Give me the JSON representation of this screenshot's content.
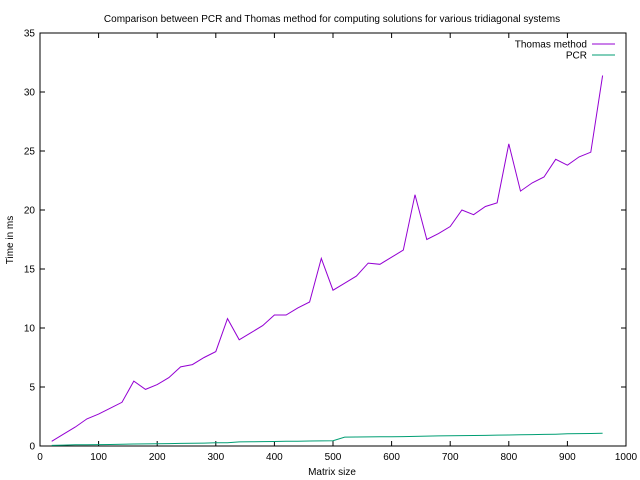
{
  "chart_data": {
    "type": "line",
    "title": "Comparison between PCR and Thomas method for computing solutions for various tridiagonal systems",
    "xlabel": "Matrix size",
    "ylabel": "Time in ms",
    "xlim": [
      0,
      1000
    ],
    "ylim": [
      0,
      35
    ],
    "xticks": [
      0,
      100,
      200,
      300,
      400,
      500,
      600,
      700,
      800,
      900,
      1000
    ],
    "yticks": [
      0,
      5,
      10,
      15,
      20,
      25,
      30,
      35
    ],
    "grid": false,
    "legend_position": "top-right",
    "x": [
      20,
      40,
      60,
      80,
      100,
      120,
      140,
      160,
      180,
      200,
      220,
      240,
      260,
      280,
      300,
      320,
      340,
      360,
      380,
      400,
      420,
      440,
      460,
      480,
      500,
      520,
      540,
      560,
      580,
      600,
      620,
      640,
      660,
      680,
      700,
      720,
      740,
      760,
      780,
      800,
      820,
      840,
      860,
      880,
      900,
      920,
      940,
      960
    ],
    "series": [
      {
        "name": "Thomas method",
        "color": "#9400d3",
        "values": [
          0.4,
          1.0,
          1.6,
          2.3,
          2.7,
          3.2,
          3.7,
          5.5,
          4.8,
          5.2,
          5.8,
          6.7,
          6.9,
          7.5,
          8.0,
          10.8,
          9.0,
          9.6,
          10.2,
          11.1,
          11.1,
          11.7,
          12.2,
          15.9,
          13.2,
          13.8,
          14.4,
          15.5,
          15.4,
          16.0,
          16.6,
          21.3,
          17.5,
          18.0,
          18.6,
          20.0,
          19.6,
          20.3,
          20.6,
          25.6,
          21.6,
          22.3,
          22.8,
          24.3,
          23.8,
          24.5,
          24.9,
          31.4
        ]
      },
      {
        "name": "PCR",
        "color": "#009e73",
        "values": [
          0.05,
          0.08,
          0.1,
          0.11,
          0.12,
          0.13,
          0.15,
          0.17,
          0.18,
          0.19,
          0.2,
          0.22,
          0.23,
          0.25,
          0.27,
          0.28,
          0.35,
          0.36,
          0.37,
          0.38,
          0.4,
          0.41,
          0.42,
          0.43,
          0.45,
          0.75,
          0.76,
          0.77,
          0.78,
          0.79,
          0.8,
          0.81,
          0.84,
          0.86,
          0.87,
          0.88,
          0.89,
          0.9,
          0.92,
          0.93,
          0.95,
          0.97,
          0.98,
          1.0,
          1.03,
          1.05,
          1.06,
          1.08
        ]
      }
    ]
  }
}
